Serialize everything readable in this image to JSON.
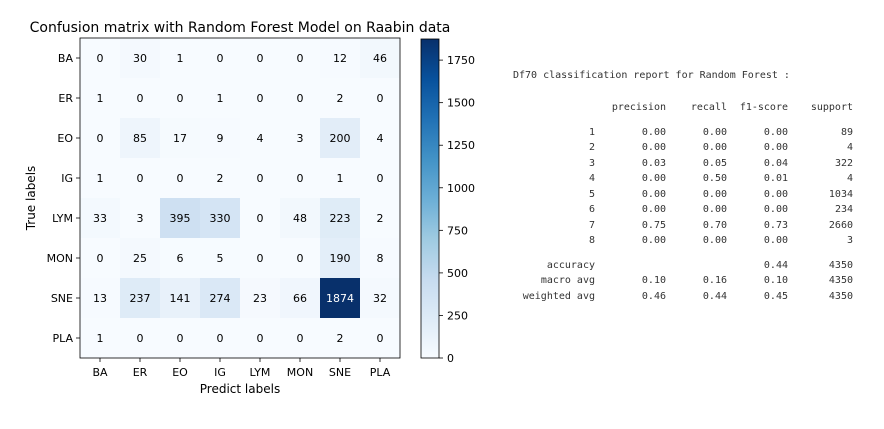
{
  "chart_data": {
    "type": "heatmap",
    "title": "Confusion matrix with Random Forest Model on Raabin data",
    "xlabel": "Predict labels",
    "ylabel": "True labels",
    "x_categories": [
      "BA",
      "ER",
      "EO",
      "IG",
      "LYM",
      "MON",
      "SNE",
      "PLA"
    ],
    "y_categories": [
      "BA",
      "ER",
      "EO",
      "IG",
      "LYM",
      "MON",
      "SNE",
      "PLA"
    ],
    "matrix": [
      [
        0,
        30,
        1,
        0,
        0,
        0,
        12,
        46
      ],
      [
        1,
        0,
        0,
        1,
        0,
        0,
        2,
        0
      ],
      [
        0,
        85,
        17,
        9,
        4,
        3,
        200,
        4
      ],
      [
        1,
        0,
        0,
        2,
        0,
        0,
        1,
        0
      ],
      [
        33,
        3,
        395,
        330,
        0,
        48,
        223,
        2
      ],
      [
        0,
        25,
        6,
        5,
        0,
        0,
        190,
        8
      ],
      [
        13,
        237,
        141,
        274,
        23,
        66,
        1874,
        32
      ],
      [
        1,
        0,
        0,
        0,
        0,
        0,
        2,
        0
      ]
    ],
    "colormap": "Blues",
    "colorbar": {
      "min": 0,
      "max": 1874,
      "ticks": [
        "0",
        "250",
        "500",
        "750",
        "1000",
        "1250",
        "1500",
        "1750"
      ]
    }
  },
  "report": {
    "title": "Df70 classification report for Random Forest :",
    "headers": [
      "",
      "precision",
      "recall",
      "f1-score",
      "support"
    ],
    "rows": [
      [
        "1",
        "0.00",
        "0.00",
        "0.00",
        "89"
      ],
      [
        "2",
        "0.00",
        "0.00",
        "0.00",
        "4"
      ],
      [
        "3",
        "0.03",
        "0.05",
        "0.04",
        "322"
      ],
      [
        "4",
        "0.00",
        "0.50",
        "0.01",
        "4"
      ],
      [
        "5",
        "0.00",
        "0.00",
        "0.00",
        "1034"
      ],
      [
        "6",
        "0.00",
        "0.00",
        "0.00",
        "234"
      ],
      [
        "7",
        "0.75",
        "0.70",
        "0.73",
        "2660"
      ],
      [
        "8",
        "0.00",
        "0.00",
        "0.00",
        "3"
      ]
    ],
    "summary": [
      [
        "accuracy",
        "",
        "",
        "0.44",
        "4350"
      ],
      [
        "macro avg",
        "0.10",
        "0.16",
        "0.10",
        "4350"
      ],
      [
        "weighted avg",
        "0.46",
        "0.44",
        "0.45",
        "4350"
      ]
    ]
  }
}
